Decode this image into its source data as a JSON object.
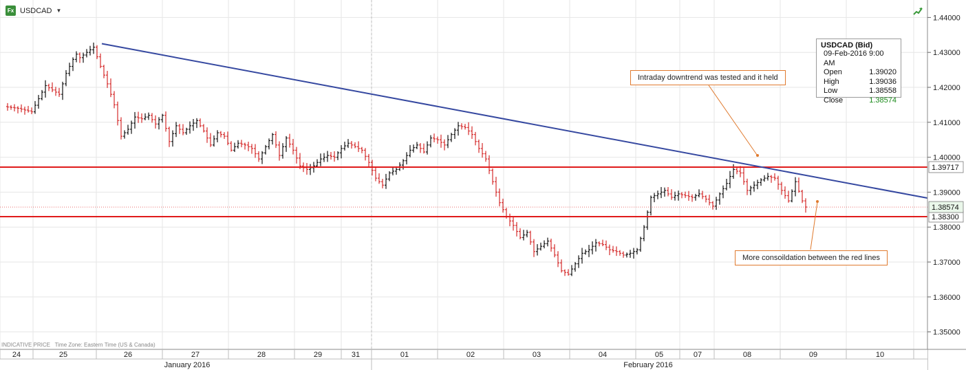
{
  "header": {
    "symbol": "USDCAD",
    "fx_icon_text": "Fx",
    "icon": "fx-icon",
    "dropdown_icon": "caret-down-icon",
    "trend_icon": "trend-arrow-icon"
  },
  "ohlc_box": {
    "title": "USDCAD (Bid)",
    "date": "09-Feb-2016 9:00 AM",
    "rows": [
      {
        "label": "Open",
        "value": "1.39020"
      },
      {
        "label": "High",
        "value": "1.39036"
      },
      {
        "label": "Low",
        "value": "1.38558"
      },
      {
        "label": "Close",
        "value": "1.38574"
      }
    ],
    "close_color": "#1a8a1a"
  },
  "annotations": {
    "top": "Intraday downtrend was tested and it held",
    "bottom": "More consoildation between the red lines"
  },
  "footer": {
    "indicative": "INDICATIVE PRICE",
    "timezone": "Time Zone: Eastern Time (US & Canada)"
  },
  "colors": {
    "up": "#111111",
    "down": "#d42a2a",
    "trendline": "#3548a0",
    "support": "#e01a1a",
    "annotation": "#e07a2e",
    "grid": "#e6e6e6"
  },
  "chart_data": {
    "type": "ohlc-bar",
    "title": "USDCAD",
    "ylim": [
      1.345,
      1.445
    ],
    "y_ticks": [
      "1.35000",
      "1.36000",
      "1.37000",
      "1.38000",
      "1.39000",
      "1.40000",
      "1.41000",
      "1.42000",
      "1.43000",
      "1.44000"
    ],
    "x_day_labels": [
      "24",
      "25",
      "26",
      "27",
      "28",
      "29",
      "31",
      "01",
      "02",
      "03",
      "04",
      "05",
      "07",
      "08",
      "09",
      "10"
    ],
    "month_labels": [
      "January 2016",
      "February 2016"
    ],
    "horizontal_lines": [
      {
        "name": "resistance",
        "value": 1.39717,
        "label": "1.39717"
      },
      {
        "name": "support",
        "value": 1.383,
        "label": "1.38300"
      },
      {
        "name": "last-price",
        "value": 1.38574,
        "label": "1.38574"
      }
    ],
    "trendline": {
      "from_value": 1.4325,
      "to_value": 1.3883
    },
    "price_path": [
      [
        0,
        1.4145
      ],
      [
        4,
        1.414
      ],
      [
        8,
        1.413
      ],
      [
        12,
        1.4205
      ],
      [
        16,
        1.418
      ],
      [
        18,
        1.424
      ],
      [
        20,
        1.428
      ],
      [
        21,
        1.4295
      ],
      [
        22,
        1.4285
      ],
      [
        24,
        1.43
      ],
      [
        26,
        1.4315
      ],
      [
        28,
        1.426
      ],
      [
        30,
        1.421
      ],
      [
        32,
        1.415
      ],
      [
        34,
        1.406
      ],
      [
        36,
        1.408
      ],
      [
        38,
        1.4115
      ],
      [
        40,
        1.411
      ],
      [
        42,
        1.412
      ],
      [
        44,
        1.4095
      ],
      [
        46,
        1.412
      ],
      [
        48,
        1.4045
      ],
      [
        50,
        1.409
      ],
      [
        52,
        1.407
      ],
      [
        54,
        1.409
      ],
      [
        56,
        1.4105
      ],
      [
        58,
        1.4075
      ],
      [
        60,
        1.4035
      ],
      [
        62,
        1.407
      ],
      [
        64,
        1.406
      ],
      [
        66,
        1.402
      ],
      [
        68,
        1.404
      ],
      [
        70,
        1.4035
      ],
      [
        72,
        1.4025
      ],
      [
        74,
        1.3995
      ],
      [
        76,
        1.403
      ],
      [
        78,
        1.4065
      ],
      [
        80,
        1.4005
      ],
      [
        82,
        1.4055
      ],
      [
        84,
        1.402
      ],
      [
        86,
        1.3975
      ],
      [
        88,
        1.3965
      ],
      [
        90,
        1.3975
      ],
      [
        92,
        1.3995
      ],
      [
        94,
        1.4005
      ],
      [
        96,
        1.4
      ],
      [
        98,
        1.4025
      ],
      [
        100,
        1.404
      ],
      [
        102,
        1.403
      ],
      [
        104,
        1.402
      ],
      [
        106,
        1.3985
      ],
      [
        108,
        1.394
      ],
      [
        110,
        1.392
      ],
      [
        112,
        1.3955
      ],
      [
        114,
        1.3965
      ],
      [
        116,
        1.399
      ],
      [
        118,
        1.402
      ],
      [
        120,
        1.4035
      ],
      [
        122,
        1.4015
      ],
      [
        124,
        1.4055
      ],
      [
        126,
        1.405
      ],
      [
        128,
        1.4035
      ],
      [
        130,
        1.4065
      ],
      [
        132,
        1.409
      ],
      [
        134,
        1.4085
      ],
      [
        136,
        1.4065
      ],
      [
        138,
        1.4025
      ],
      [
        140,
        1.3995
      ],
      [
        142,
        1.393
      ],
      [
        144,
        1.387
      ],
      [
        146,
        1.383
      ],
      [
        148,
        1.3805
      ],
      [
        150,
        1.377
      ],
      [
        152,
        1.3785
      ],
      [
        154,
        1.373
      ],
      [
        156,
        1.3745
      ],
      [
        158,
        1.376
      ],
      [
        160,
        1.372
      ],
      [
        162,
        1.3675
      ],
      [
        164,
        1.3665
      ],
      [
        166,
        1.3695
      ],
      [
        168,
        1.3725
      ],
      [
        170,
        1.3735
      ],
      [
        172,
        1.3755
      ],
      [
        174,
        1.375
      ],
      [
        176,
        1.3735
      ],
      [
        178,
        1.373
      ],
      [
        180,
        1.372
      ],
      [
        182,
        1.3725
      ],
      [
        184,
        1.3735
      ],
      [
        186,
        1.38
      ],
      [
        188,
        1.3885
      ],
      [
        190,
        1.3895
      ],
      [
        192,
        1.3905
      ],
      [
        194,
        1.3885
      ],
      [
        196,
        1.3895
      ],
      [
        198,
        1.389
      ],
      [
        200,
        1.3885
      ],
      [
        202,
        1.3895
      ],
      [
        204,
        1.388
      ],
      [
        206,
        1.386
      ],
      [
        208,
        1.3895
      ],
      [
        210,
        1.3925
      ],
      [
        212,
        1.3965
      ],
      [
        214,
        1.3955
      ],
      [
        216,
        1.3905
      ],
      [
        218,
        1.392
      ],
      [
        220,
        1.3935
      ],
      [
        222,
        1.3945
      ],
      [
        224,
        1.394
      ],
      [
        226,
        1.3905
      ],
      [
        228,
        1.3875
      ],
      [
        230,
        1.393
      ],
      [
        232,
        1.3875
      ],
      [
        233,
        1.38574
      ]
    ]
  }
}
